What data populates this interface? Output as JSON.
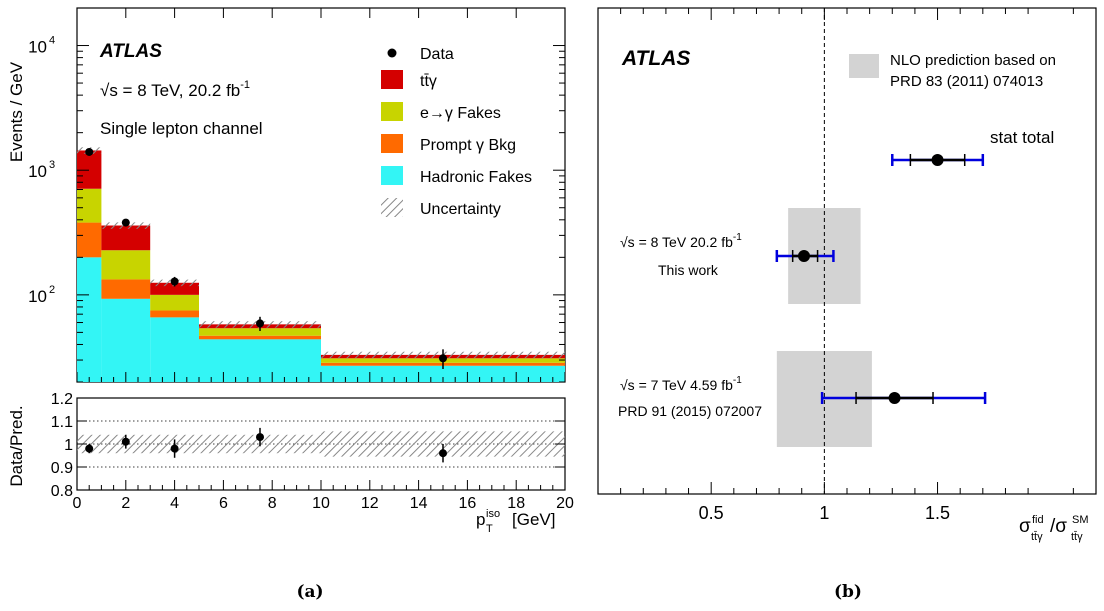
{
  "chart_data": [
    {
      "type": "histogram",
      "panel_label": "(a)",
      "scale": "log",
      "xlabel_main": "p",
      "xlabel_sub": "T",
      "xlabel_sup": "iso",
      "xlabel_unit": "[GeV]",
      "ylabel": "Events / GeV",
      "ratio_ylabel": "Data/Pred.",
      "xlim": [
        0,
        20
      ],
      "ylim": [
        20,
        20000
      ],
      "ratio_ylim": [
        0.8,
        1.2
      ],
      "x_ticks": [
        "0",
        "2",
        "4",
        "6",
        "8",
        "10",
        "12",
        "14",
        "16",
        "18",
        "20"
      ],
      "ratio_ticks": [
        "0.8",
        "0.9",
        "1",
        "1.1",
        "1.2"
      ],
      "y_tick_labels": [
        {
          "base": "10",
          "exp": "2",
          "value": 100
        },
        {
          "base": "10",
          "exp": "3",
          "value": 1000
        },
        {
          "base": "10",
          "exp": "4",
          "value": 10000
        }
      ],
      "atlas_label": "ATLAS",
      "energy_label": "√s = 8 TeV, 20.2 fb",
      "energy_label_sup": "-1",
      "channel_label": "Single lepton channel",
      "bins": [
        [
          0,
          1
        ],
        [
          1,
          3
        ],
        [
          3,
          5
        ],
        [
          5,
          10
        ],
        [
          10,
          20
        ]
      ],
      "stack": [
        {
          "name": "Hadronic Fakes",
          "color": "#33f5f5",
          "values": [
            200,
            93,
            66,
            44,
            27
          ]
        },
        {
          "name": "Prompt γ Bkg",
          "color": "#ff6a00",
          "values": [
            180,
            40,
            9,
            3,
            1.5
          ]
        },
        {
          "name": "e→γ Fakes",
          "color": "#c8d400",
          "values": [
            330,
            95,
            25,
            7,
            2.5
          ]
        },
        {
          "name": "tt̄γ",
          "color": "#d40000",
          "values": [
            730,
            132,
            25,
            4,
            2
          ]
        }
      ],
      "data": {
        "name": "Data",
        "x": [
          0.5,
          2,
          4,
          7.5,
          15
        ],
        "y": [
          1400,
          380,
          128,
          59,
          31
        ]
      },
      "ratio": {
        "x": [
          0.5,
          2,
          4,
          7.5,
          15
        ],
        "y": [
          0.98,
          1.01,
          0.98,
          1.03,
          0.96
        ],
        "err": [
          0.02,
          0.03,
          0.04,
          0.04,
          0.04
        ]
      },
      "uncertainty_label": "Uncertainty",
      "legend": [
        "Data",
        "tt̄γ",
        "e→γ Fakes",
        "Prompt γ Bkg",
        "Hadronic Fakes",
        "Uncertainty"
      ]
    },
    {
      "type": "summary",
      "panel_label": "(b)",
      "atlas_label": "ATLAS",
      "xlim": [
        0,
        2.2
      ],
      "x_ticks": [
        "0.5",
        "1",
        "1.5"
      ],
      "xlabel": "σ^fid_tt̄γ / σ^SM_tt̄γ",
      "prediction_line": 1.0,
      "legend_text": [
        "NLO prediction based on",
        "PRD 83 (2011) 074013"
      ],
      "stat_total_label": "stat total",
      "legend_marker": {
        "value": 1.5,
        "stat": 0.12,
        "total": 0.2
      },
      "measurements": [
        {
          "label1": "√s = 8 TeV  20.2 fb",
          "label1_sup": "-1",
          "label2": "This work",
          "value": 0.91,
          "stat_lo": 0.05,
          "stat_hi": 0.06,
          "total_lo": 0.12,
          "total_hi": 0.13,
          "theory_lo": 0.84,
          "theory_hi": 1.16
        },
        {
          "label1": "√s = 7 TeV  4.59 fb",
          "label1_sup": "-1",
          "label2": "PRD 91 (2015) 072007",
          "value": 1.31,
          "stat_lo": 0.17,
          "stat_hi": 0.17,
          "total_lo": 0.32,
          "total_hi": 0.4,
          "theory_lo": 0.79,
          "theory_hi": 1.21
        }
      ]
    }
  ]
}
